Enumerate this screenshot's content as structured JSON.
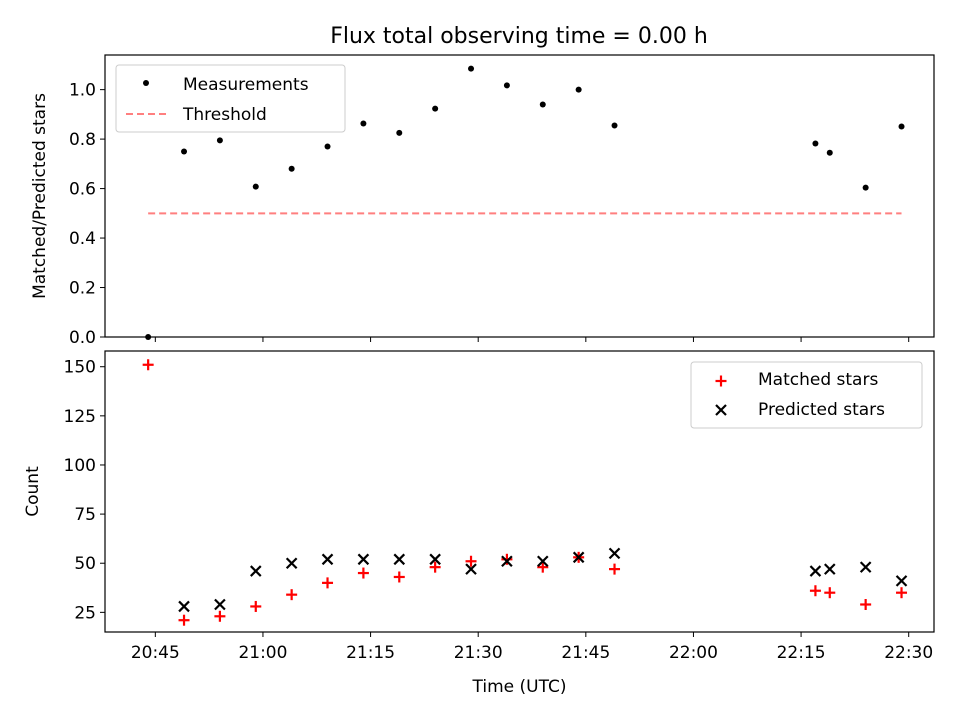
{
  "chart_data": [
    {
      "type": "scatter",
      "title": "Flux total observing time = 0.00 h",
      "ylabel": "Matched/Predicted stars",
      "xlabel": "",
      "ylim": [
        0,
        1.14
      ],
      "yticks": [
        "0.0",
        "0.2",
        "0.4",
        "0.6",
        "0.8",
        "1.0"
      ],
      "legend_position": "upper-left",
      "series": [
        {
          "name": "Measurements",
          "marker": "dot",
          "color": "#000000",
          "x": [
            "20:44",
            "20:49",
            "20:54",
            "20:59",
            "21:04",
            "21:09",
            "21:14",
            "21:19",
            "21:24",
            "21:29",
            "21:34",
            "21:39",
            "21:44",
            "21:49",
            "22:17",
            "22:19",
            "22:24",
            "22:29"
          ],
          "y": [
            0.0,
            0.75,
            0.795,
            0.608,
            0.68,
            0.77,
            0.863,
            0.825,
            0.923,
            1.085,
            1.017,
            0.94,
            1.0,
            0.855,
            0.782,
            0.745,
            0.604,
            0.851
          ]
        },
        {
          "name": "Threshold",
          "marker": "dashed-line",
          "color": "#ff7f7f",
          "x": [
            "20:44",
            "22:29"
          ],
          "y": [
            0.5,
            0.5
          ]
        }
      ]
    },
    {
      "type": "scatter",
      "title": "",
      "ylabel": "Count",
      "xlabel": "Time (UTC)",
      "ylim": [
        15,
        158
      ],
      "yticks": [
        "25",
        "50",
        "75",
        "100",
        "125",
        "150"
      ],
      "xticks": [
        "20:45",
        "21:00",
        "21:15",
        "21:30",
        "21:45",
        "22:00",
        "22:15",
        "22:30"
      ],
      "legend_position": "upper-right",
      "series": [
        {
          "name": "Matched stars",
          "marker": "plus",
          "color": "#ff0000",
          "x": [
            "20:44",
            "20:49",
            "20:54",
            "20:59",
            "21:04",
            "21:09",
            "21:14",
            "21:19",
            "21:24",
            "21:29",
            "21:34",
            "21:39",
            "21:44",
            "21:49",
            "22:17",
            "22:19",
            "22:24",
            "22:29"
          ],
          "y": [
            151,
            21,
            23,
            28,
            34,
            40,
            45,
            43,
            48,
            51,
            52,
            48,
            53,
            47,
            36,
            35,
            29,
            35
          ]
        },
        {
          "name": "Predicted stars",
          "marker": "x",
          "color": "#000000",
          "x": [
            "20:44",
            "20:49",
            "20:54",
            "20:59",
            "21:04",
            "21:09",
            "21:14",
            "21:19",
            "21:24",
            "21:29",
            "21:34",
            "21:39",
            "21:44",
            "21:49",
            "22:17",
            "22:19",
            "22:24",
            "22:29"
          ],
          "y": [
            null,
            28,
            29,
            46,
            50,
            52,
            52,
            52,
            52,
            47,
            51,
            51,
            53,
            55,
            46,
            47,
            48,
            41
          ]
        }
      ]
    }
  ]
}
